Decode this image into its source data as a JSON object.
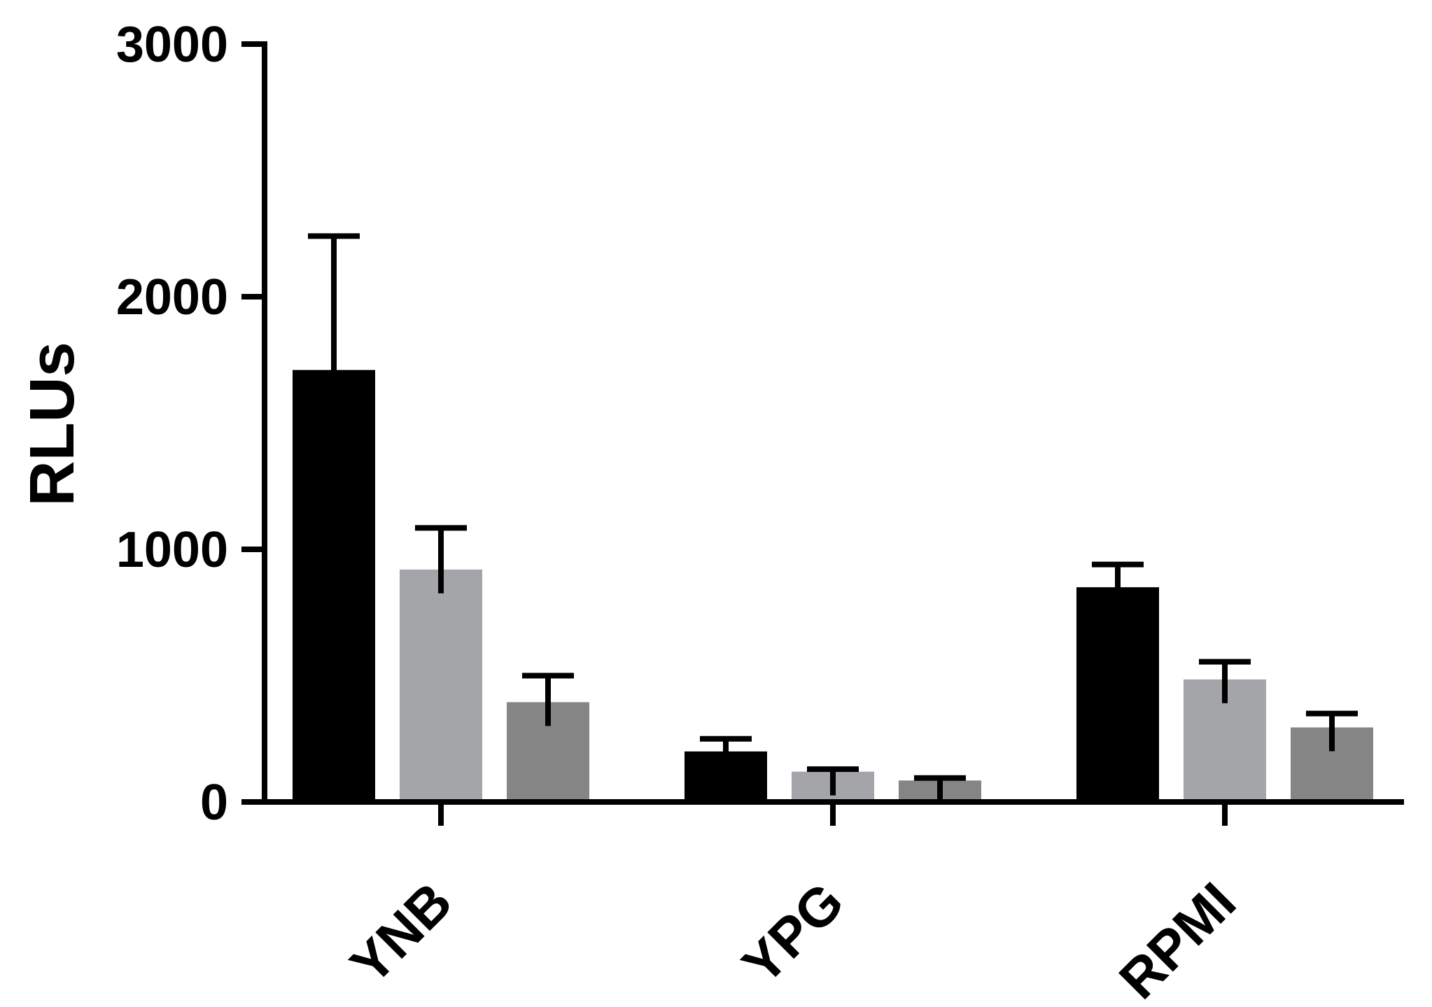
{
  "chart_data": {
    "type": "bar",
    "title": "",
    "xlabel": "",
    "ylabel": "RLUs",
    "ylim": [
      0,
      3000
    ],
    "yticks": [
      "0",
      "1000",
      "2000",
      "3000"
    ],
    "grid": false,
    "legend": "none",
    "categories": [
      "YNB",
      "YPG",
      "RPMI"
    ],
    "series": [
      {
        "color": "#000000",
        "values": [
          1710,
          200,
          850
        ],
        "errors": [
          530,
          50,
          90
        ]
      },
      {
        "color": "#a4a5a8",
        "values": [
          920,
          120,
          485
        ],
        "errors": [
          165,
          10,
          70
        ]
      },
      {
        "color": "#858585",
        "values": [
          395,
          85,
          295
        ],
        "errors": [
          105,
          10,
          55
        ]
      }
    ]
  }
}
